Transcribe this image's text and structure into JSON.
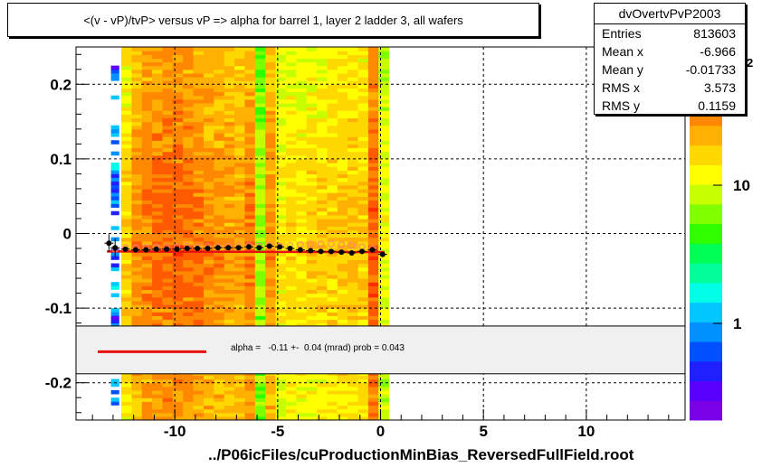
{
  "title": "<(v - vP)/tvP>  versus   vP => alpha for barrel 1, layer 2 ladder 3, all wafers",
  "stats": {
    "name": "dvOvertvPvP2003",
    "rows": [
      {
        "key": "Entries",
        "value": "813603"
      },
      {
        "key": "Mean x",
        "value": "-6.966"
      },
      {
        "key": "Mean y",
        "value": "-0.01733"
      },
      {
        "key": "RMS x",
        "value": "3.573"
      },
      {
        "key": "RMS y",
        "value": "0.1159"
      }
    ]
  },
  "fit_legend": {
    "text": "alpha =   -0.11 +-  0.04 (mrad) prob = 0.043",
    "line_color": "#e8100a"
  },
  "footer": "../P06icFiles/cuProductionMinBias_ReversedFullField.root",
  "colorbar": {
    "tick_labels": [
      "1",
      "10"
    ],
    "top_partial_label": "2"
  },
  "chart_data": {
    "type": "heatmap",
    "title": "<(v - vP)/tvP>  versus   vP => alpha for barrel 1, layer 2 ladder 3, all wafers",
    "xlabel": "",
    "ylabel": "",
    "xlim": [
      -14.8,
      14.8
    ],
    "ylim": [
      -0.25,
      0.25
    ],
    "x_ticks": [
      -10,
      -5,
      0,
      5,
      10
    ],
    "y_ticks": [
      -0.2,
      -0.1,
      0,
      0.1,
      0.2
    ],
    "y_tick_labels": [
      "-0.2",
      "-0.1",
      "0",
      "0.1",
      "0.2"
    ],
    "grid": true,
    "z_scale": "log",
    "z_range": [
      0.2,
      100
    ],
    "heatmap_x_range": [
      -12.6,
      0.0
    ],
    "sparse_strip_x": [
      -13.1,
      -12.7
    ],
    "column_intensity": [
      {
        "x": -12.6,
        "z": 18
      },
      {
        "x": -12.1,
        "z": 30
      },
      {
        "x": -11.6,
        "z": 35
      },
      {
        "x": -11.1,
        "z": 38
      },
      {
        "x": -10.6,
        "z": 40
      },
      {
        "x": -10.1,
        "z": 42
      },
      {
        "x": -9.6,
        "z": 38
      },
      {
        "x": -9.1,
        "z": 36
      },
      {
        "x": -8.6,
        "z": 32
      },
      {
        "x": -8.1,
        "z": 30
      },
      {
        "x": -7.6,
        "z": 28
      },
      {
        "x": -7.1,
        "z": 26
      },
      {
        "x": -6.6,
        "z": 34
      },
      {
        "x": -6.1,
        "z": 8
      },
      {
        "x": -5.6,
        "z": 30
      },
      {
        "x": -5.1,
        "z": 14
      },
      {
        "x": -4.6,
        "z": 16
      },
      {
        "x": -4.1,
        "z": 15
      },
      {
        "x": -3.6,
        "z": 17
      },
      {
        "x": -3.1,
        "z": 18
      },
      {
        "x": -2.6,
        "z": 19
      },
      {
        "x": -2.1,
        "z": 20
      },
      {
        "x": -1.6,
        "z": 21
      },
      {
        "x": -1.1,
        "z": 18
      },
      {
        "x": -0.6,
        "z": 45
      },
      {
        "x": -0.1,
        "z": 12
      }
    ],
    "profile_points": [
      {
        "x": -13.2,
        "y": -0.013
      },
      {
        "x": -12.9,
        "y": -0.019
      },
      {
        "x": -12.4,
        "y": -0.021
      },
      {
        "x": -11.9,
        "y": -0.022
      },
      {
        "x": -11.4,
        "y": -0.022
      },
      {
        "x": -10.9,
        "y": -0.021
      },
      {
        "x": -10.4,
        "y": -0.021
      },
      {
        "x": -9.9,
        "y": -0.021
      },
      {
        "x": -9.4,
        "y": -0.02
      },
      {
        "x": -8.9,
        "y": -0.02
      },
      {
        "x": -8.4,
        "y": -0.02
      },
      {
        "x": -7.9,
        "y": -0.019
      },
      {
        "x": -7.4,
        "y": -0.019
      },
      {
        "x": -6.9,
        "y": -0.019
      },
      {
        "x": -6.4,
        "y": -0.018
      },
      {
        "x": -5.9,
        "y": -0.019
      },
      {
        "x": -5.4,
        "y": -0.017
      },
      {
        "x": -4.9,
        "y": -0.018
      },
      {
        "x": -4.4,
        "y": -0.02
      },
      {
        "x": -3.9,
        "y": -0.022
      },
      {
        "x": -3.4,
        "y": -0.023
      },
      {
        "x": -2.9,
        "y": -0.024
      },
      {
        "x": -2.4,
        "y": -0.024
      },
      {
        "x": -1.9,
        "y": -0.025
      },
      {
        "x": -1.4,
        "y": -0.026
      },
      {
        "x": -0.9,
        "y": -0.024
      },
      {
        "x": -0.4,
        "y": -0.022
      },
      {
        "x": 0.1,
        "y": -0.028
      }
    ],
    "open_points": [
      {
        "x": -12.9,
        "y": -0.021
      },
      {
        "x": -12.4,
        "y": -0.019
      },
      {
        "x": -11.9,
        "y": -0.019
      },
      {
        "x": -11.4,
        "y": -0.019
      },
      {
        "x": -10.9,
        "y": -0.018
      },
      {
        "x": -10.4,
        "y": -0.018
      },
      {
        "x": -9.9,
        "y": -0.018
      },
      {
        "x": -9.4,
        "y": -0.017
      },
      {
        "x": -8.9,
        "y": -0.018
      },
      {
        "x": -8.4,
        "y": -0.017
      },
      {
        "x": -7.9,
        "y": -0.018
      },
      {
        "x": -7.4,
        "y": -0.017
      },
      {
        "x": -6.9,
        "y": -0.016
      },
      {
        "x": -6.4,
        "y": -0.016
      },
      {
        "x": -5.9,
        "y": -0.017
      },
      {
        "x": -5.4,
        "y": -0.016
      },
      {
        "x": -4.9,
        "y": -0.017
      },
      {
        "x": -4.4,
        "y": -0.016
      },
      {
        "x": -3.9,
        "y": -0.015
      },
      {
        "x": -3.4,
        "y": -0.014
      },
      {
        "x": -2.9,
        "y": -0.014
      },
      {
        "x": -2.4,
        "y": -0.014
      },
      {
        "x": -1.9,
        "y": -0.015
      },
      {
        "x": -1.4,
        "y": -0.016
      },
      {
        "x": -0.9,
        "y": -0.018
      },
      {
        "x": -0.4,
        "y": -0.02
      }
    ],
    "fit_line": {
      "x": [
        -13.3,
        0.2
      ],
      "y": [
        -0.024,
        -0.025
      ],
      "color": "#e8100a"
    }
  }
}
